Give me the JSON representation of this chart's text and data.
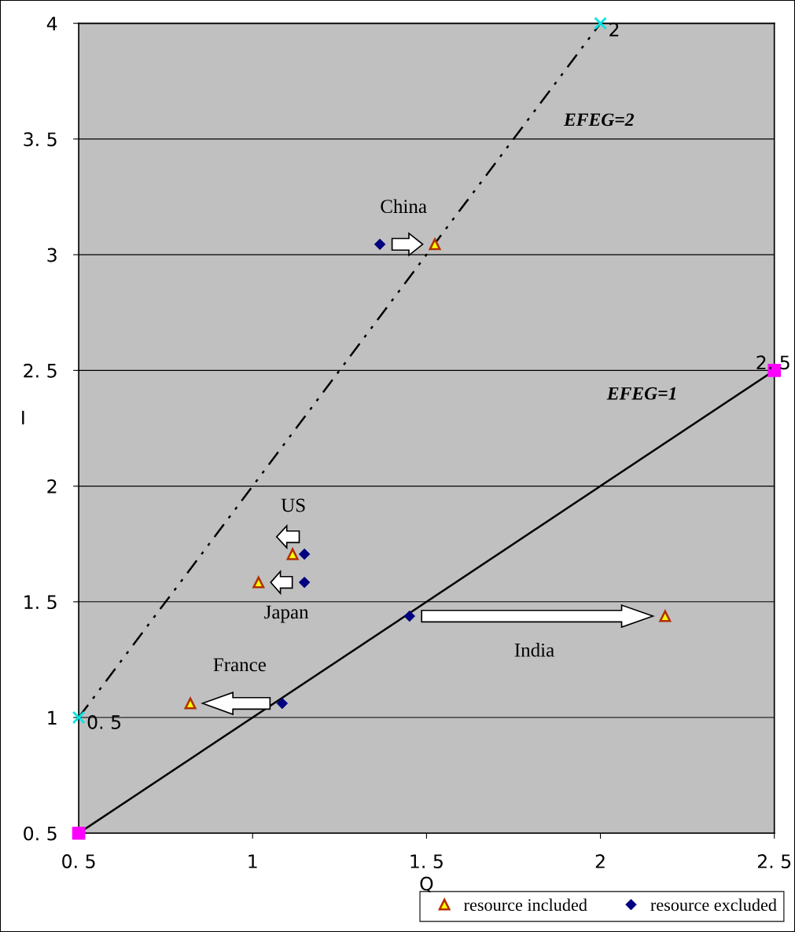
{
  "chart_data": {
    "type": "scatter",
    "xlabel": "Q",
    "ylabel": "I",
    "xlim": [
      0.5,
      2.5
    ],
    "ylim": [
      0.5,
      4
    ],
    "xticks": [
      {
        "value": 0.5,
        "label": "0. 5"
      },
      1,
      {
        "value": 1.5,
        "label": "1. 5"
      },
      2,
      {
        "value": 2.5,
        "label": "2. 5"
      }
    ],
    "yticks": [
      {
        "value": 0.5,
        "label": "0. 5"
      },
      1,
      {
        "value": 1.5,
        "label": "1. 5"
      },
      2,
      {
        "value": 2.5,
        "label": "2. 5"
      },
      3,
      {
        "value": 3.5,
        "label": "3. 5"
      },
      4
    ],
    "grid": "y",
    "legend": "bottom right",
    "series": [
      {
        "type": "line",
        "color": "#000000",
        "line_style": "dashdot",
        "marker": "cross",
        "colors": [
          "#00e5e5",
          "#00e5e5"
        ],
        "x": [
          0.5,
          2
        ],
        "values": [
          1,
          4
        ]
      },
      {
        "type": "line",
        "color": "#000000",
        "line_style": "solid",
        "marker": "square",
        "colors": [
          "#ff00ff",
          "#ff00ff"
        ],
        "x": [
          0.5,
          2.5
        ],
        "values": [
          0.5,
          2.5
        ]
      },
      {
        "name": "resource included",
        "color": "#ffff00",
        "marker": "triangle",
        "x": [
          1.524,
          1.115,
          1.017,
          2.186,
          0.821
        ],
        "values": [
          3.045,
          1.706,
          1.584,
          1.438,
          1.061
        ]
      },
      {
        "name": "resource excluded",
        "color": "#000080",
        "marker": "diamond",
        "x": [
          1.366,
          1.149,
          1.149,
          1.451,
          1.085
        ],
        "values": [
          3.045,
          1.706,
          1.584,
          1.438,
          1.061
        ]
      }
    ],
    "annotations": [
      {
        "text": "China",
        "x": 1.366,
        "y": 3.045
      },
      {
        "text": "US",
        "x": 1.149,
        "y": 1.706
      },
      {
        "text": "Japan",
        "x": 1.149,
        "y": 1.584
      },
      {
        "text": "France",
        "x": 1.085,
        "y": 1.061
      },
      "India",
      "EFEG=2",
      "EFEG=1",
      {
        "text": "0. 5",
        "x": 0.5,
        "y": 1
      },
      {
        "text": "2",
        "x": 2,
        "y": 4
      },
      {
        "text": "2. 5",
        "x": 2.5,
        "y": 2.5
      }
    ]
  }
}
